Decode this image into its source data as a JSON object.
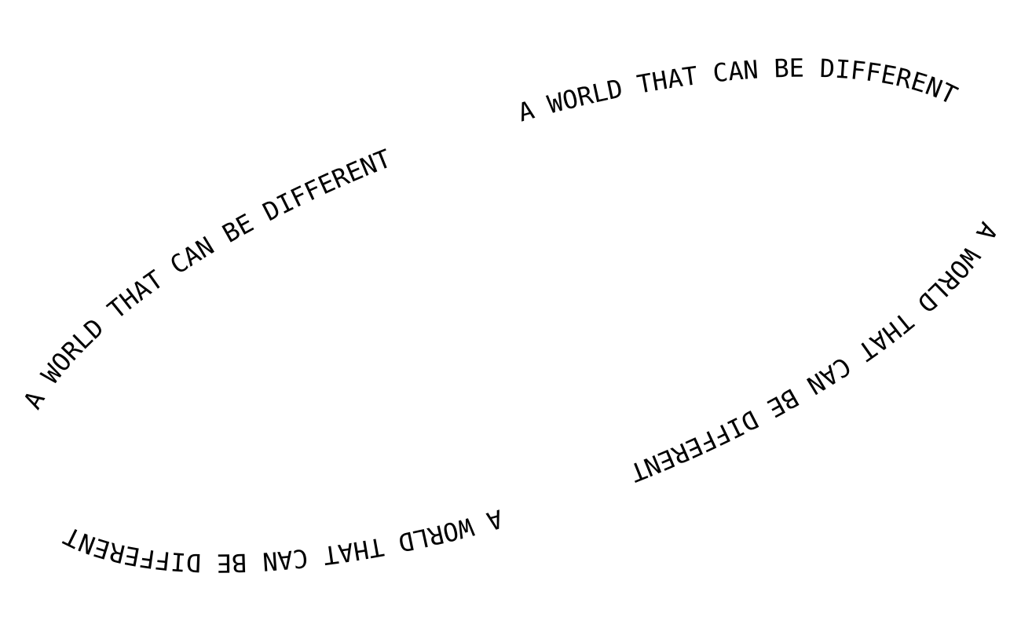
{
  "ring": {
    "phrase": "A WORLD THAT CAN BE DIFFERENT",
    "repeat_count": 4,
    "text_color": "#000000",
    "background_color": "#ffffff"
  }
}
